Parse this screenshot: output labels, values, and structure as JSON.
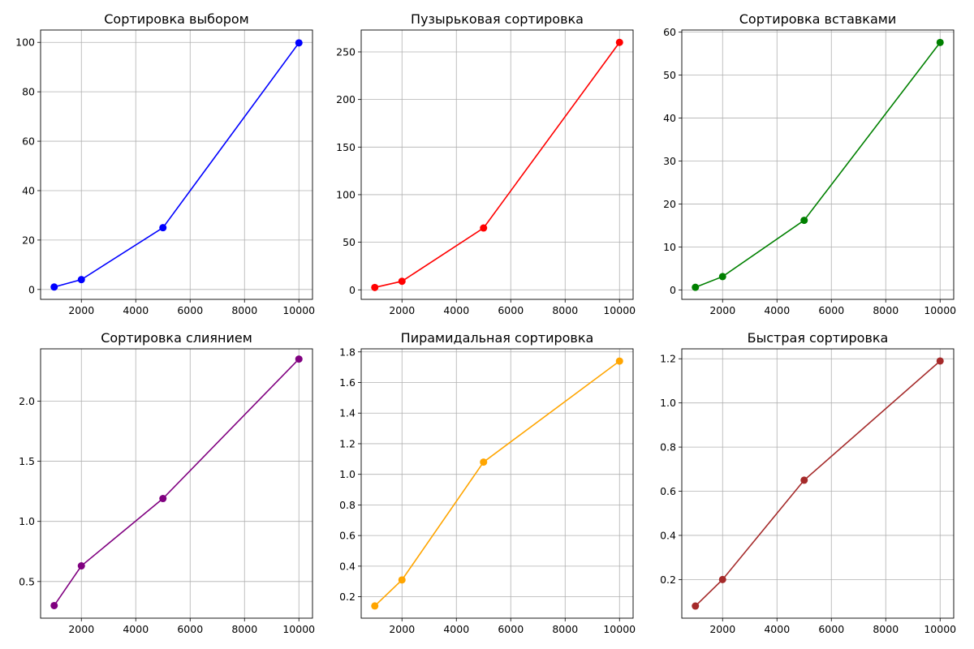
{
  "chart_data": [
    {
      "type": "line",
      "title": "Сортировка выбором",
      "x": [
        1000,
        2000,
        5000,
        10000
      ],
      "series": [
        {
          "values": [
            1.0,
            4.0,
            25.0,
            99.8
          ],
          "color": "#0000ff"
        }
      ],
      "xlim": [
        500,
        10500
      ],
      "ylim": [
        -4,
        105
      ],
      "xticks": [
        2000,
        4000,
        6000,
        8000,
        10000
      ],
      "yticks": [
        0,
        20,
        40,
        60,
        80,
        100
      ],
      "yticklabels": [
        "0",
        "20",
        "40",
        "60",
        "80",
        "100"
      ],
      "grid": true
    },
    {
      "type": "line",
      "title": "Пузырьковая сортировка",
      "x": [
        1000,
        2000,
        5000,
        10000
      ],
      "series": [
        {
          "values": [
            2.5,
            9.0,
            65.0,
            260.0
          ],
          "color": "#ff0000"
        }
      ],
      "xlim": [
        500,
        10500
      ],
      "ylim": [
        -10,
        273
      ],
      "xticks": [
        2000,
        4000,
        6000,
        8000,
        10000
      ],
      "yticks": [
        0,
        50,
        100,
        150,
        200,
        250
      ],
      "yticklabels": [
        "0",
        "50",
        "100",
        "150",
        "200",
        "250"
      ],
      "grid": true
    },
    {
      "type": "line",
      "title": "Сортировка вставками",
      "x": [
        1000,
        2000,
        5000,
        10000
      ],
      "series": [
        {
          "values": [
            0.6,
            3.1,
            16.2,
            57.6
          ],
          "color": "#008000"
        }
      ],
      "xlim": [
        500,
        10500
      ],
      "ylim": [
        -2.2,
        60.5
      ],
      "xticks": [
        2000,
        4000,
        6000,
        8000,
        10000
      ],
      "yticks": [
        0,
        10,
        20,
        30,
        40,
        50,
        60
      ],
      "yticklabels": [
        "0",
        "10",
        "20",
        "30",
        "40",
        "50",
        "60"
      ],
      "grid": true
    },
    {
      "type": "line",
      "title": "Сортировка слиянием",
      "x": [
        1000,
        2000,
        5000,
        10000
      ],
      "series": [
        {
          "values": [
            0.3,
            0.63,
            1.19,
            2.35
          ],
          "color": "#800080"
        }
      ],
      "xlim": [
        500,
        10500
      ],
      "ylim": [
        0.195,
        2.435
      ],
      "xticks": [
        2000,
        4000,
        6000,
        8000,
        10000
      ],
      "yticks": [
        0.5,
        1.0,
        1.5,
        2.0
      ],
      "yticklabels": [
        "0.5",
        "1.0",
        "1.5",
        "2.0"
      ],
      "grid": true
    },
    {
      "type": "line",
      "title": "Пирамидальная сортировка",
      "x": [
        1000,
        2000,
        5000,
        10000
      ],
      "series": [
        {
          "values": [
            0.14,
            0.31,
            1.08,
            1.74
          ],
          "color": "#ffa500"
        }
      ],
      "xlim": [
        500,
        10500
      ],
      "ylim": [
        0.06,
        1.82
      ],
      "xticks": [
        2000,
        4000,
        6000,
        8000,
        10000
      ],
      "yticks": [
        0.2,
        0.4,
        0.6,
        0.8,
        1.0,
        1.2,
        1.4,
        1.6,
        1.8
      ],
      "yticklabels": [
        "0.2",
        "0.4",
        "0.6",
        "0.8",
        "1.0",
        "1.2",
        "1.4",
        "1.6",
        "1.8"
      ],
      "grid": true
    },
    {
      "type": "line",
      "title": "Быстрая сортировка",
      "x": [
        1000,
        2000,
        5000,
        10000
      ],
      "series": [
        {
          "values": [
            0.08,
            0.2,
            0.65,
            1.19
          ],
          "color": "#a52a2a"
        }
      ],
      "xlim": [
        500,
        10500
      ],
      "ylim": [
        0.025,
        1.245
      ],
      "xticks": [
        2000,
        4000,
        6000,
        8000,
        10000
      ],
      "yticks": [
        0.2,
        0.4,
        0.6,
        0.8,
        1.0,
        1.2
      ],
      "yticklabels": [
        "0.2",
        "0.4",
        "0.6",
        "0.8",
        "1.0",
        "1.2"
      ],
      "grid": true
    }
  ]
}
